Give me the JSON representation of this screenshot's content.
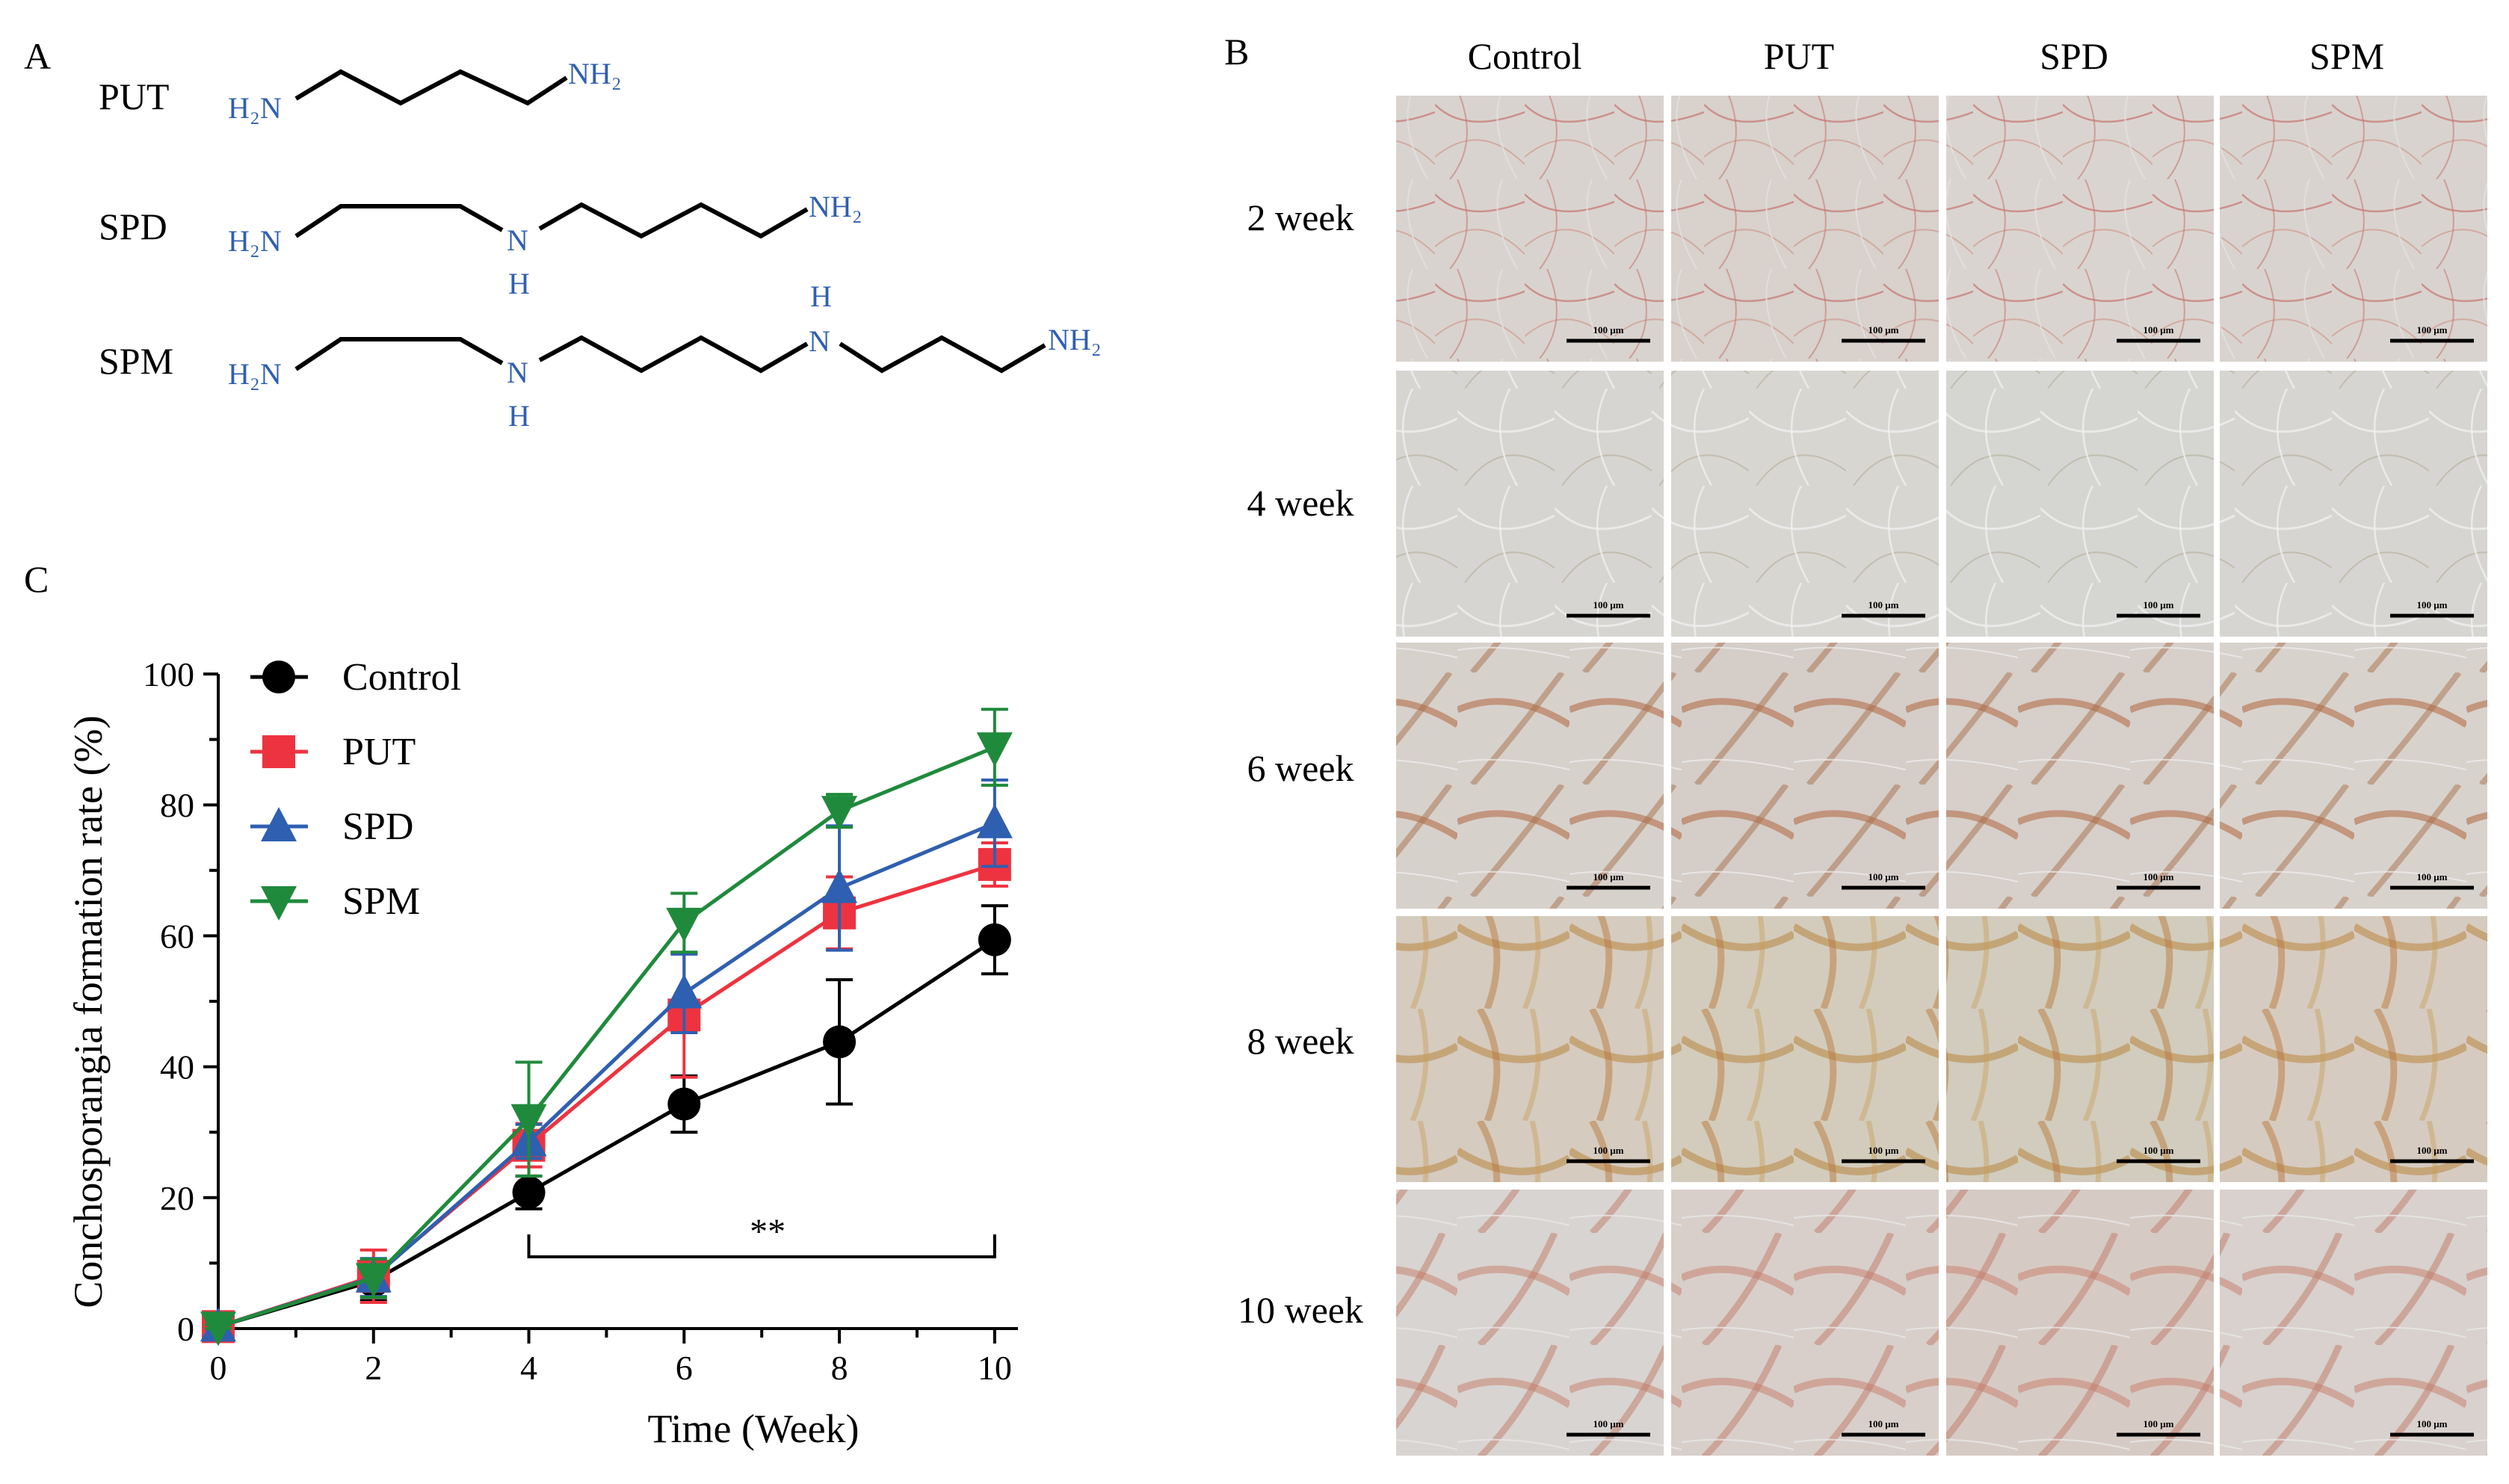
{
  "colors": {
    "chem": "#2f5fb0",
    "control": "#000000",
    "put": "#ee3340",
    "spd": "#2f5fb0",
    "spm": "#1f8a3c",
    "photo_bg": "#d6d4d2"
  },
  "panel_a": {
    "label": "A",
    "compounds": [
      {
        "name": "PUT",
        "left_group": "H₂N",
        "right_group": "NH₂",
        "nh": []
      },
      {
        "name": "SPD",
        "left_group": "H₂N",
        "right_group": "NH₂",
        "nh": [
          {
            "n": "N",
            "h": "H"
          }
        ]
      },
      {
        "name": "SPM",
        "left_group": "H₂N",
        "right_group": "NH₂",
        "nh": [
          {
            "n": "N",
            "h": "H"
          },
          {
            "n": "N",
            "h": "H"
          }
        ]
      }
    ]
  },
  "panel_b": {
    "label": "B",
    "columns": [
      "Control",
      "PUT",
      "SPD",
      "SPM"
    ],
    "rows": [
      "2 week",
      "4 week",
      "6 week",
      "8 week",
      "10 week"
    ],
    "scale_bar": "100 μm",
    "photo_tones": [
      [
        "#d9d3cf",
        "#d8d1cc",
        "#dad4d0",
        "#d9d3cf"
      ],
      [
        "#d6d5d1",
        "#d8d6d1",
        "#d5d6d2",
        "#d6d5d1"
      ],
      [
        "#d7d1cc",
        "#d5cdc8",
        "#d6cfca",
        "#d8d2cd"
      ],
      [
        "#d5cbbf",
        "#d3ccbc",
        "#d1ccbd",
        "#d6cbc0"
      ],
      [
        "#d8d4d1",
        "#d8cfca",
        "#d6cbc4",
        "#d8d1cd"
      ]
    ]
  },
  "panel_c": {
    "label": "C",
    "significance": "**"
  },
  "chart_data": {
    "type": "line",
    "title": "",
    "xlabel": "Time (Week)",
    "ylabel": "Conchosporangia formation rate (%)",
    "x": [
      0,
      2,
      4,
      6,
      8,
      10
    ],
    "xticks": [
      "0",
      "2",
      "4",
      "6",
      "8",
      "10"
    ],
    "yticks": [
      "0",
      "20",
      "40",
      "60",
      "80",
      "100"
    ],
    "xlim": [
      0,
      10.3
    ],
    "ylim": [
      0,
      100
    ],
    "legend": "top-left",
    "series": [
      {
        "name": "Control",
        "marker": "circle",
        "color": "#000000",
        "values": [
          0.3,
          7.3,
          20.8,
          34.3,
          43.8,
          59.4
        ],
        "errors": [
          0.3,
          3.0,
          2.5,
          4.3,
          9.5,
          5.2
        ]
      },
      {
        "name": "PUT",
        "marker": "square",
        "color": "#ee3340",
        "values": [
          0.3,
          8.0,
          28.0,
          47.9,
          63.5,
          70.9
        ],
        "errors": [
          0.3,
          4.0,
          3.3,
          9.5,
          5.5,
          3.3
        ]
      },
      {
        "name": "SPD",
        "marker": "triangle-up",
        "color": "#2f5fb0",
        "values": [
          0.3,
          7.8,
          28.6,
          51.2,
          67.3,
          77.2
        ],
        "errors": [
          0.3,
          2.9,
          2.6,
          6.0,
          9.5,
          6.6
        ]
      },
      {
        "name": "SPM",
        "marker": "triangle-down",
        "color": "#1f8a3c",
        "values": [
          0.3,
          7.7,
          32.0,
          62.0,
          79.1,
          88.8
        ],
        "errors": [
          0.3,
          2.9,
          8.7,
          4.5,
          2.5,
          5.8
        ]
      }
    ],
    "annotations": [
      {
        "text": "**",
        "from_x": 4,
        "to_x": 10
      }
    ]
  }
}
